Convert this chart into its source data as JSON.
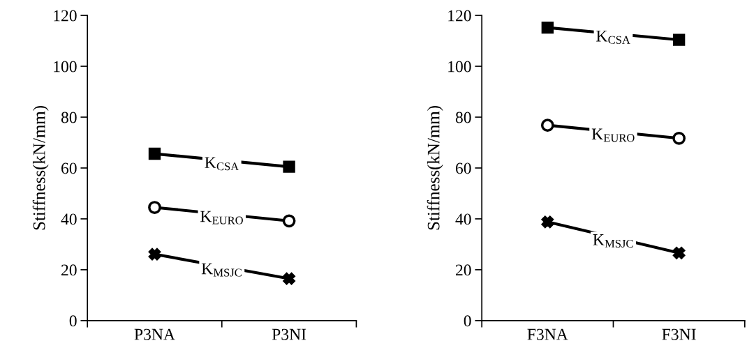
{
  "chart_data": [
    {
      "type": "line",
      "ylabel": "Stiffness(kN/mm)",
      "categories": [
        "P3NA",
        "P3NI"
      ],
      "ylim": [
        0,
        120
      ],
      "yticks": [
        0,
        20,
        40,
        60,
        80,
        100,
        120
      ],
      "grid": false,
      "legend": false,
      "series": [
        {
          "name": "K$_{CSA}$",
          "color": "#000000",
          "marker": "square",
          "values": [
            65.6,
            60.5
          ]
        },
        {
          "name": "K$_{EURO}$",
          "color": "#000000",
          "marker": "circle",
          "values": [
            44.5,
            39.2
          ]
        },
        {
          "name": "K$_{MSJC}$",
          "color": "#000000",
          "marker": "cross",
          "values": [
            26.1,
            16.5
          ]
        }
      ]
    },
    {
      "type": "line",
      "ylabel": "Stiffness(kN/mm)",
      "categories": [
        "F3NA",
        "F3NI"
      ],
      "ylim": [
        0,
        120
      ],
      "yticks": [
        0,
        20,
        40,
        60,
        80,
        100,
        120
      ],
      "grid": false,
      "legend": false,
      "series": [
        {
          "name": "K$_{CSA}$",
          "color": "#000000",
          "marker": "square",
          "values": [
            115.2,
            110.4
          ]
        },
        {
          "name": "K$_{EURO}$",
          "color": "#000000",
          "marker": "circle",
          "values": [
            76.8,
            71.7
          ]
        },
        {
          "name": "K$_{MSJC}$",
          "color": "#000000",
          "marker": "cross",
          "values": [
            38.8,
            26.6
          ]
        }
      ]
    }
  ]
}
